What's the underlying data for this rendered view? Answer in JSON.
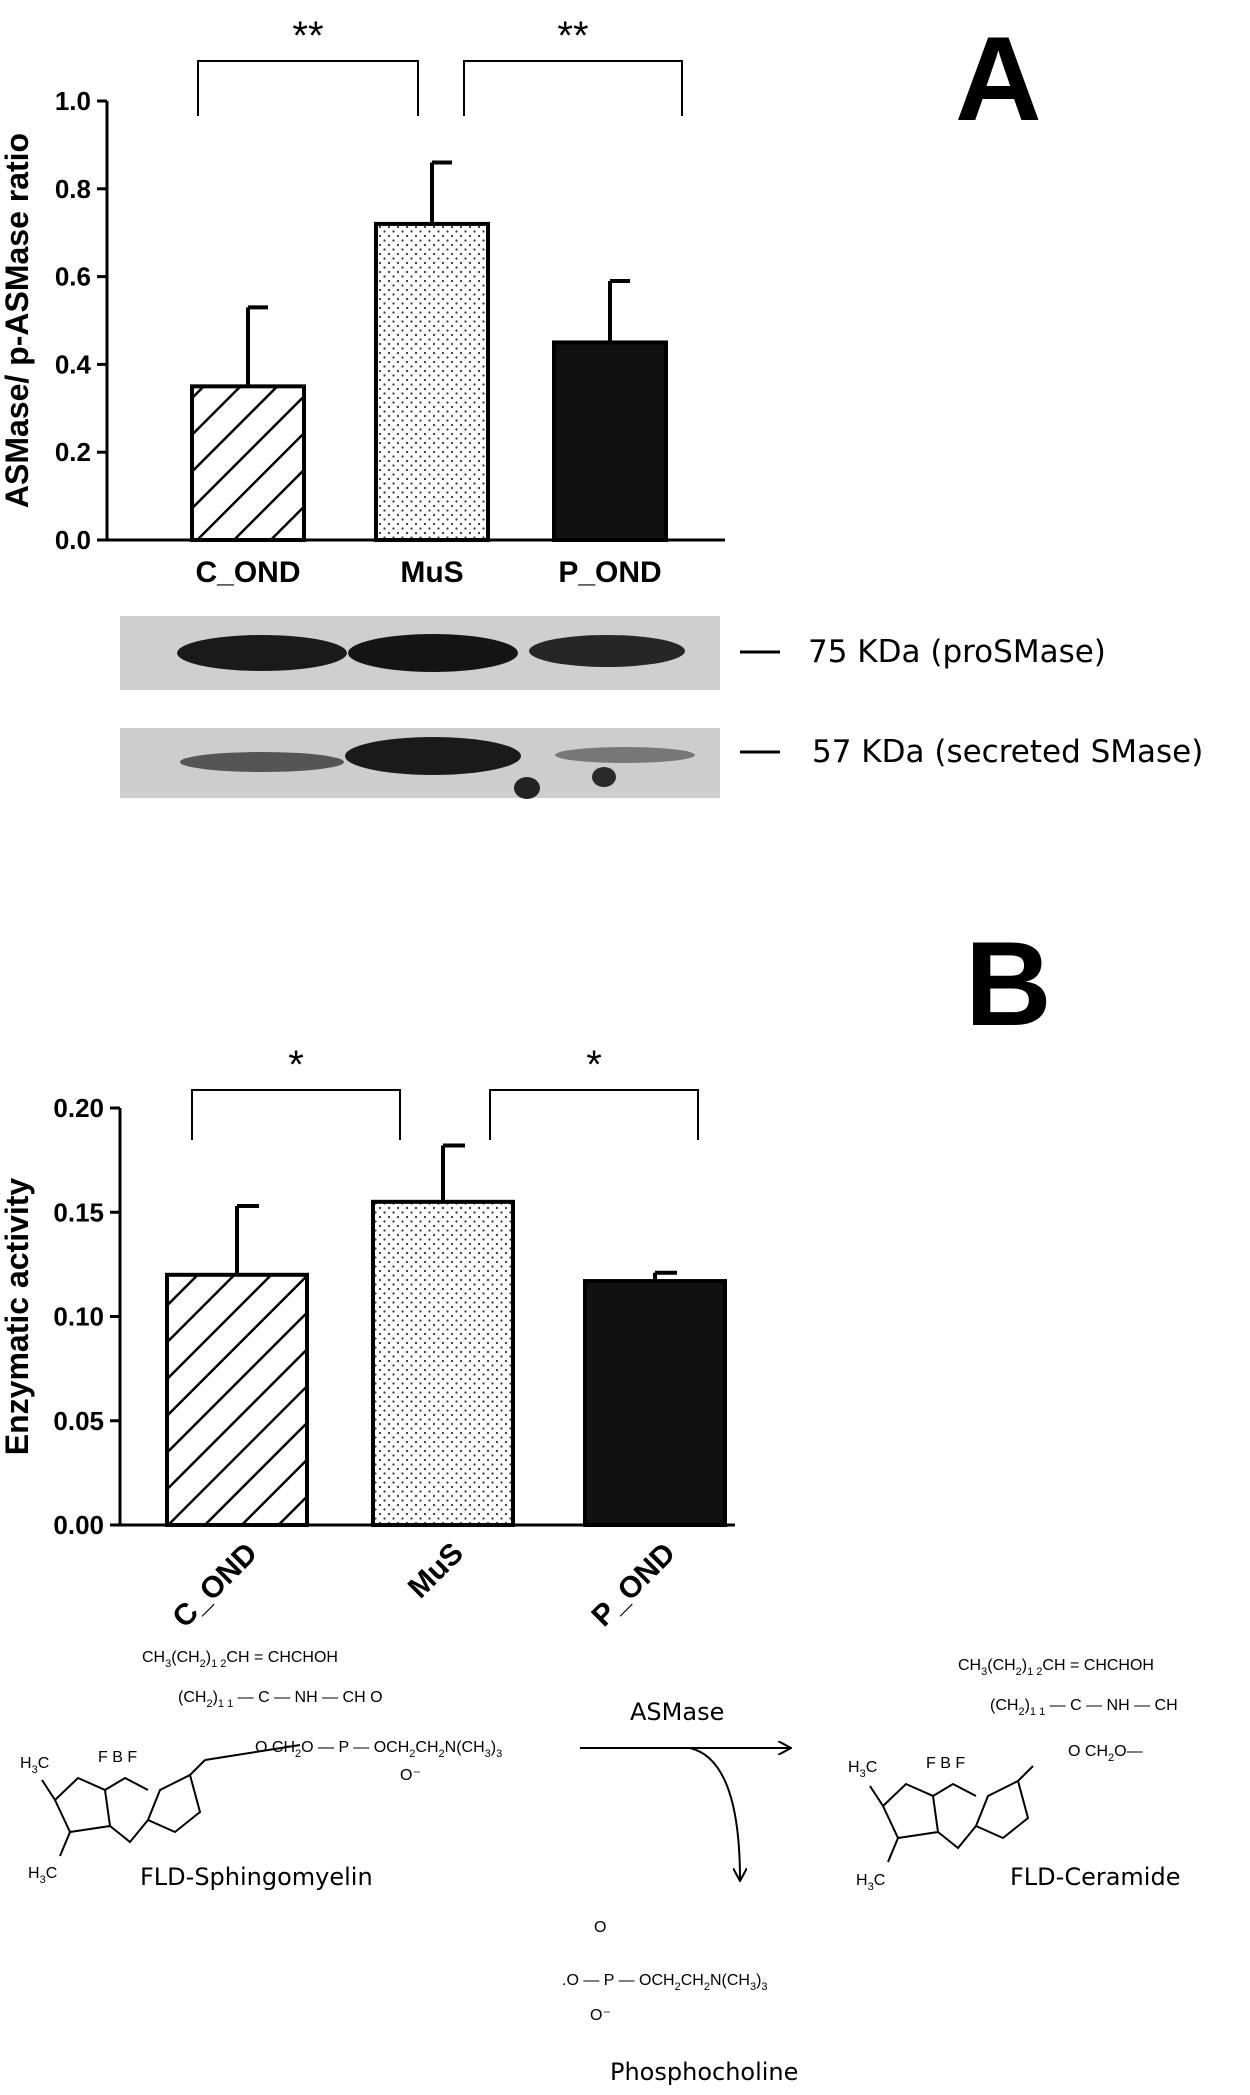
{
  "panels": {
    "a": "A",
    "b": "B"
  },
  "chart_data": [
    {
      "type": "bar",
      "panel": "A",
      "categories": [
        "C_OND",
        "MuS",
        "P_OND"
      ],
      "values": [
        0.35,
        0.72,
        0.45
      ],
      "errors": [
        0.18,
        0.14,
        0.14
      ],
      "ylabel": "ASMase/ p-ASMase ratio",
      "ylim": [
        0,
        1.0
      ],
      "yticks": [
        "0.0",
        "0.2",
        "0.4",
        "0.6",
        "0.8",
        "1.0"
      ],
      "significance": [
        {
          "from": "C_OND",
          "to": "MuS",
          "label": "**"
        },
        {
          "from": "MuS",
          "to": "P_OND",
          "label": "**"
        }
      ],
      "fill_patterns": [
        "hatch",
        "dots",
        "solid"
      ]
    },
    {
      "type": "bar",
      "panel": "B",
      "categories": [
        "C_OND",
        "MuS",
        "P_OND"
      ],
      "values": [
        0.12,
        0.155,
        0.117
      ],
      "errors": [
        0.033,
        0.027,
        0.004
      ],
      "ylabel": "Enzymatic activity",
      "ylim": [
        0,
        0.2
      ],
      "yticks": [
        "0.00",
        "0.05",
        "0.10",
        "0.15",
        "0.20"
      ],
      "significance": [
        {
          "from": "C_OND",
          "to": "MuS",
          "label": "*"
        },
        {
          "from": "MuS",
          "to": "P_OND",
          "label": "*"
        }
      ],
      "fill_patterns": [
        "hatch",
        "dots",
        "solid"
      ]
    }
  ],
  "western_blot": {
    "bands": [
      "75 KDa (proSMase)",
      "57 KDa (secreted SMase)"
    ]
  },
  "reaction": {
    "substrate": "FLD-Sphingomyelin",
    "enzyme": "ASMase",
    "product": "FLD-Ceramide",
    "byproduct": "Phosphocholine"
  }
}
